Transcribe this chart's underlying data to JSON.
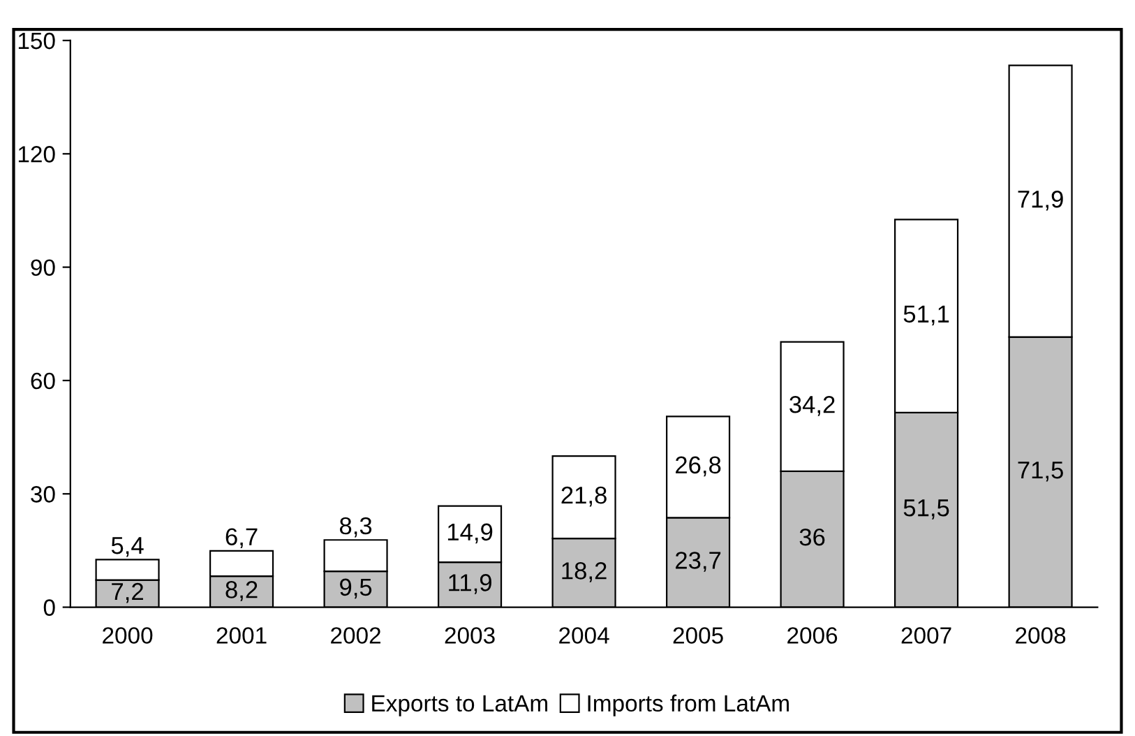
{
  "chart_data": {
    "type": "bar",
    "stacked": true,
    "categories": [
      "2000",
      "2001",
      "2002",
      "2003",
      "2004",
      "2005",
      "2006",
      "2007",
      "2008"
    ],
    "series": [
      {
        "name": "Exports to LatAm",
        "color": "#c0c0c0",
        "values": [
          7.2,
          8.2,
          9.5,
          11.9,
          18.2,
          23.7,
          36,
          51.5,
          71.5
        ],
        "value_labels": [
          "7,2",
          "8,2",
          "9,5",
          "11,9",
          "18,2",
          "23,7",
          "36",
          "51,5",
          "71,5"
        ]
      },
      {
        "name": "Imports from LatAm",
        "color": "#ffffff",
        "values": [
          5.4,
          6.7,
          8.3,
          14.9,
          21.8,
          26.8,
          34.2,
          51.1,
          71.9
        ],
        "value_labels": [
          "5,4",
          "6,7",
          "8,3",
          "14,9",
          "21,8",
          "26,8",
          "34,2",
          "51,1",
          "71,9"
        ]
      }
    ],
    "ylim": [
      0,
      150
    ],
    "yticks": [
      0,
      30,
      60,
      90,
      120,
      150
    ],
    "grid": false,
    "legend": "bottom"
  }
}
